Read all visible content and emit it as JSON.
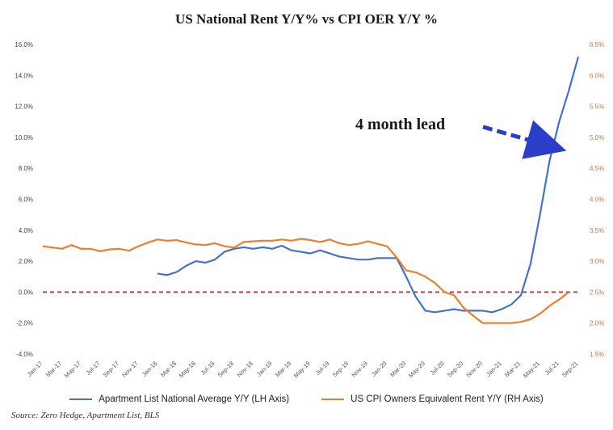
{
  "chart_data": {
    "type": "line",
    "title": "US National Rent Y/Y%  vs CPI OER Y/Y %",
    "source": "Source: Zero Hedge, Apartment List, BLS",
    "annotation": "4 month lead",
    "x_tick_labels": [
      "Jan-17",
      "Mar-17",
      "May-17",
      "Jul-17",
      "Sep-17",
      "Nov-17",
      "Jan-18",
      "Mar-18",
      "May-18",
      "Jul-18",
      "Sep-18",
      "Nov-18",
      "Jan-19",
      "Mar-19",
      "May-19",
      "Jul-19",
      "Sep-19",
      "Nov-19",
      "Jan-20",
      "Mar-20",
      "May-20",
      "Jul-20",
      "Sep-20",
      "Nov-20",
      "Jan-21",
      "Mar-21",
      "May-21",
      "Jul-21",
      "Sep-21"
    ],
    "y_left": {
      "label": "",
      "ticks": [
        "16.0%",
        "14.0%",
        "12.0%",
        "10.0%",
        "8.0%",
        "6.0%",
        "4.0%",
        "2.0%",
        "0.0%",
        "-2.0%",
        "-4.0%"
      ],
      "ylim": [
        -4,
        16
      ]
    },
    "y_right": {
      "label": "",
      "ticks": [
        "6.5%",
        "6.0%",
        "5.5%",
        "5.0%",
        "4.5%",
        "4.0%",
        "3.5%",
        "3.0%",
        "2.5%",
        "2.0%",
        "1.5%"
      ],
      "ylim": [
        1.5,
        6.5
      ]
    },
    "grid": false,
    "reference_line": {
      "axis": "left",
      "value": 0,
      "style": "dashed",
      "color": "#cc2222"
    },
    "series": [
      {
        "name": "Apartment List  National Average Y/Y (LH Axis)",
        "axis": "left",
        "color": "#4472c4",
        "start_index": 12,
        "values": [
          1.2,
          1.1,
          1.3,
          1.7,
          2.0,
          1.9,
          2.1,
          2.6,
          2.8,
          2.9,
          2.8,
          2.9,
          2.8,
          3.0,
          2.7,
          2.6,
          2.5,
          2.7,
          2.5,
          2.3,
          2.2,
          2.1,
          2.1,
          2.2,
          2.2,
          2.2,
          1.0,
          -0.3,
          -1.2,
          -1.3,
          -1.2,
          -1.1,
          -1.2,
          -1.2,
          -1.2,
          -1.3,
          -1.1,
          -0.8,
          -0.2,
          1.8,
          5.0,
          8.5,
          11.0,
          13.0,
          15.2
        ]
      },
      {
        "name": "US CPI Owners Equivalent Rent Y/Y (RH Axis)",
        "axis": "right",
        "color": "#ed7d31",
        "start_index": 0,
        "values": [
          3.24,
          3.22,
          3.2,
          3.26,
          3.2,
          3.2,
          3.16,
          3.19,
          3.2,
          3.17,
          3.24,
          3.3,
          3.35,
          3.33,
          3.34,
          3.3,
          3.27,
          3.26,
          3.29,
          3.24,
          3.22,
          3.31,
          3.32,
          3.33,
          3.33,
          3.35,
          3.33,
          3.36,
          3.34,
          3.31,
          3.35,
          3.29,
          3.26,
          3.28,
          3.32,
          3.28,
          3.24,
          3.06,
          2.85,
          2.82,
          2.75,
          2.65,
          2.5,
          2.45,
          2.25,
          2.12,
          2.0,
          2.0,
          2.0,
          2.0,
          2.02,
          2.06,
          2.15,
          2.28,
          2.38,
          2.5
        ]
      }
    ]
  }
}
